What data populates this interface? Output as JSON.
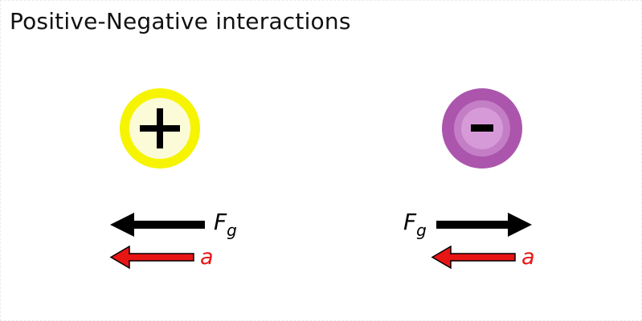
{
  "title": "Positive-Negative interactions",
  "positive_charge": {
    "symbol": "+",
    "fill": "#fcfbd8",
    "ring": "#f6f400"
  },
  "negative_charge": {
    "symbol": "−",
    "outer": "#ab55ad",
    "middle": "#c47ec6",
    "inner": "#d79ad8"
  },
  "force_label": {
    "main": "F",
    "sub": "g"
  },
  "accel_label": "a",
  "colors": {
    "force_arrow": "#000000",
    "accel_arrow": "#e81515",
    "accel_text": "#e81515"
  }
}
